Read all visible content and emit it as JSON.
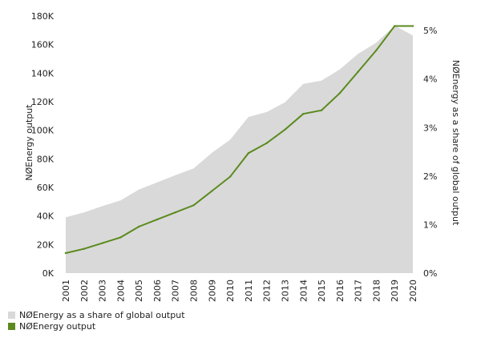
{
  "chart_data": {
    "type": "area",
    "x": [
      "2001",
      "2002",
      "2003",
      "2004",
      "2005",
      "2006",
      "2007",
      "2008",
      "2009",
      "2010",
      "2011",
      "2012",
      "2013",
      "2014",
      "2015",
      "2016",
      "2017",
      "2018",
      "2019",
      "2020"
    ],
    "series": [
      {
        "name": "NØEnergy as a share of global output",
        "type": "area",
        "axis": "right",
        "color": "#d9d9d9",
        "values": [
          1.15,
          1.25,
          1.38,
          1.5,
          1.72,
          1.87,
          2.02,
          2.16,
          2.48,
          2.75,
          3.22,
          3.32,
          3.52,
          3.9,
          3.97,
          4.2,
          4.52,
          4.75,
          5.1,
          4.9
        ]
      },
      {
        "name": "NØEnergy output",
        "type": "line",
        "axis": "left",
        "color": "#5b8a1e",
        "values": [
          14000,
          17000,
          21000,
          25000,
          32500,
          37500,
          42500,
          47500,
          57500,
          67500,
          84000,
          91000,
          100500,
          111500,
          114000,
          126000,
          141000,
          156000,
          173000,
          173000
        ]
      }
    ],
    "yleft": {
      "label": "NØEnergy output",
      "ticks": [
        "0K",
        "20K",
        "40K",
        "60K",
        "80K",
        "100K",
        "120K",
        "140K",
        "160K",
        "180K"
      ],
      "min": 0,
      "max": 180000
    },
    "yright": {
      "label": "NØEnergy as a share of global output",
      "ticks": [
        "0%",
        "1%",
        "2%",
        "3%",
        "4%",
        "5%"
      ],
      "min": 0,
      "max": 5.3
    },
    "grid": false,
    "legend_position": "bottom-left"
  }
}
